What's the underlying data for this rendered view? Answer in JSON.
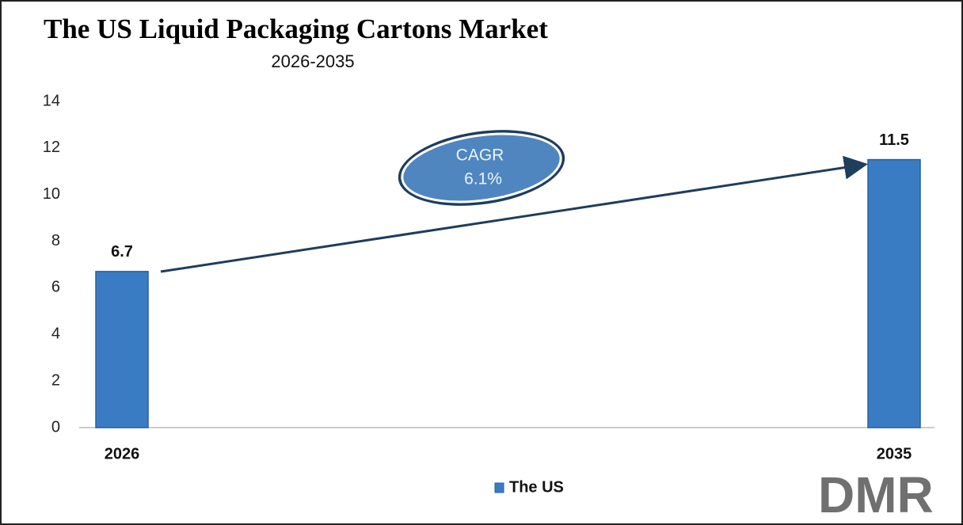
{
  "chart_data": {
    "type": "bar",
    "title": "The US Liquid Packaging Cartons Market",
    "subtitle": "2026-2035",
    "categories": [
      "2026",
      "2035"
    ],
    "series": [
      {
        "name": "The US",
        "color": "#3a7cc4",
        "values": [
          6.7,
          11.5
        ]
      }
    ],
    "ylim": [
      0,
      14
    ],
    "yticks": [
      0,
      2,
      4,
      6,
      8,
      10,
      12,
      14
    ],
    "grid": false,
    "legend": "bottom",
    "annotation": {
      "label": "CAGR",
      "value": "6.1%"
    }
  },
  "logo": "DMR"
}
